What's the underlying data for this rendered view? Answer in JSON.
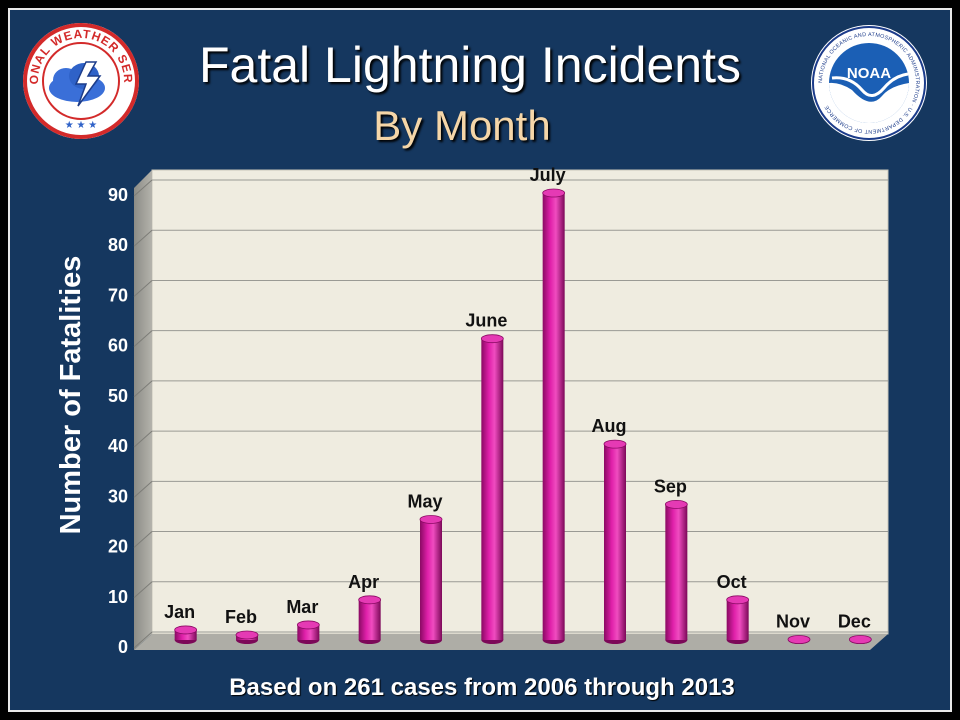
{
  "title": "Fatal Lightning Incidents",
  "subtitle": "By Month",
  "footer": "Based on 261 cases from 2006 through 2013",
  "logos": {
    "left_text": "NATIONAL WEATHER SERVICE",
    "right_text": "NOAA",
    "right_ring_text": "NATIONAL OCEANIC AND ATMOSPHERIC ADMINISTRATION · U.S. DEPARTMENT OF COMMERCE"
  },
  "colors": {
    "background": "#15375f",
    "bar": "#d4129c",
    "plot_bg": "#efece0",
    "title": "#ffffff",
    "subtitle": "#f5d6a8"
  },
  "chart_data": {
    "type": "bar",
    "categories": [
      "Jan",
      "Feb",
      "Mar",
      "Apr",
      "May",
      "June",
      "July",
      "Aug",
      "Sep",
      "Oct",
      "Nov",
      "Dec"
    ],
    "values": [
      2,
      1,
      3,
      8,
      24,
      60,
      89,
      39,
      27,
      8,
      0,
      0
    ],
    "ylabel": "Number of Fatalities",
    "xlabel": "",
    "ylim": [
      0,
      90
    ],
    "yticks": [
      0,
      10,
      20,
      30,
      40,
      50,
      60,
      70,
      80,
      90
    ],
    "grid": true
  }
}
